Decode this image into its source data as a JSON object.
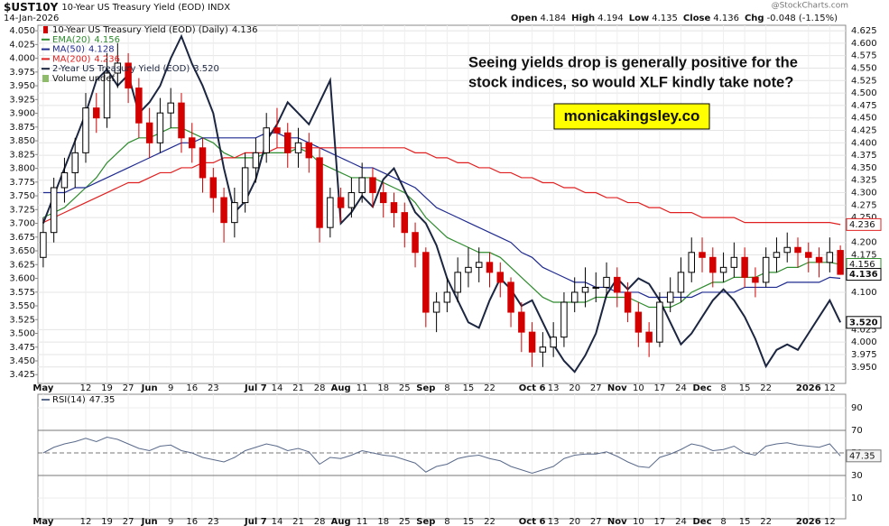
{
  "chart_data": {
    "type": "candlestick",
    "title": "$UST10Y",
    "subtitle": "10-Year US Treasury Yield (EOD) INDX",
    "date": "14-Jan-2026",
    "source": "@StockCharts.com",
    "quote": [
      {
        "label": "Open",
        "value": 4.184
      },
      {
        "label": "High",
        "value": 4.194
      },
      {
        "label": "Low",
        "value": 4.135
      },
      {
        "label": "Close",
        "value": 4.136
      },
      {
        "label": "Chg",
        "value": -0.048,
        "pct": "(-1.15%)"
      }
    ],
    "name": "10-Year US Treasury Yield (EOD) (Daily)",
    "last_label": "4.136",
    "up_color": "#000000",
    "down_color": "#d40000",
    "categories": [
      "May",
      null,
      null,
      null,
      "12",
      null,
      "19",
      null,
      "27",
      null,
      "Jun",
      null,
      "9",
      null,
      "16",
      null,
      "23",
      null,
      null,
      null,
      "Jul 7",
      null,
      "14",
      null,
      "21",
      null,
      "28",
      null,
      "Aug",
      null,
      "11",
      null,
      "18",
      null,
      "25",
      null,
      "Sep",
      null,
      "8",
      null,
      "15",
      null,
      "22",
      null,
      null,
      null,
      "Oct 6",
      null,
      "13",
      null,
      "20",
      null,
      "27",
      null,
      "Nov",
      null,
      "10",
      null,
      "17",
      null,
      "24",
      null,
      "Dec",
      null,
      "8",
      null,
      "15",
      null,
      "22",
      null,
      null,
      null,
      "2026",
      null,
      "12",
      null
    ],
    "open": [
      4.17,
      4.22,
      4.31,
      4.34,
      4.38,
      4.47,
      4.45,
      4.54,
      4.56,
      4.51,
      4.44,
      4.4,
      4.46,
      4.48,
      4.41,
      4.39,
      4.33,
      4.29,
      4.24,
      4.28,
      4.35,
      4.38,
      4.43,
      4.42,
      4.38,
      4.4,
      4.37,
      4.23,
      4.29,
      4.27,
      4.3,
      4.33,
      4.3,
      4.28,
      4.26,
      4.22,
      4.18,
      4.06,
      4.08,
      4.1,
      4.14,
      4.15,
      4.16,
      4.14,
      4.12,
      4.06,
      4.02,
      3.98,
      3.99,
      4.01,
      4.08,
      4.1,
      4.11,
      4.11,
      4.13,
      4.1,
      4.06,
      4.02,
      4.0,
      4.08,
      4.1,
      4.14,
      4.18,
      4.17,
      4.14,
      4.15,
      4.17,
      4.13,
      4.12,
      4.17,
      4.18,
      4.19,
      4.18,
      4.17,
      4.16,
      4.184
    ],
    "high": [
      4.25,
      4.33,
      4.37,
      4.41,
      4.5,
      4.5,
      4.58,
      4.6,
      4.58,
      4.53,
      4.47,
      4.49,
      4.51,
      4.5,
      4.44,
      4.41,
      4.35,
      4.31,
      4.31,
      4.38,
      4.41,
      4.46,
      4.47,
      4.44,
      4.43,
      4.42,
      4.39,
      4.31,
      4.31,
      4.33,
      4.36,
      4.35,
      4.32,
      4.3,
      4.28,
      4.24,
      4.19,
      4.1,
      4.13,
      4.17,
      4.19,
      4.19,
      4.18,
      4.16,
      4.13,
      4.08,
      4.04,
      4.02,
      4.04,
      4.1,
      4.13,
      4.15,
      4.14,
      4.16,
      4.15,
      4.12,
      4.08,
      4.04,
      4.1,
      4.13,
      4.17,
      4.21,
      4.21,
      4.19,
      4.18,
      4.2,
      4.19,
      4.15,
      4.19,
      4.21,
      4.22,
      4.21,
      4.2,
      4.19,
      4.21,
      4.194
    ],
    "low": [
      4.15,
      4.2,
      4.28,
      4.31,
      4.36,
      4.42,
      4.43,
      4.51,
      4.48,
      4.41,
      4.37,
      4.38,
      4.43,
      4.38,
      4.36,
      4.3,
      4.26,
      4.2,
      4.21,
      4.26,
      4.32,
      4.36,
      4.39,
      4.35,
      4.35,
      4.34,
      4.2,
      4.21,
      4.24,
      4.25,
      4.28,
      4.27,
      4.25,
      4.23,
      4.19,
      4.15,
      4.03,
      4.02,
      4.06,
      4.08,
      4.11,
      4.12,
      4.11,
      4.09,
      4.03,
      3.98,
      3.95,
      3.95,
      3.97,
      3.99,
      4.06,
      4.07,
      4.08,
      4.09,
      4.07,
      4.04,
      3.99,
      3.97,
      3.99,
      4.06,
      4.08,
      4.12,
      4.14,
      4.11,
      4.12,
      4.13,
      4.11,
      4.09,
      4.11,
      4.14,
      4.16,
      4.15,
      4.14,
      4.13,
      4.14,
      4.135
    ],
    "close": [
      4.22,
      4.31,
      4.34,
      4.38,
      4.47,
      4.45,
      4.54,
      4.56,
      4.51,
      4.44,
      4.4,
      4.46,
      4.48,
      4.41,
      4.39,
      4.33,
      4.29,
      4.24,
      4.28,
      4.35,
      4.38,
      4.43,
      4.42,
      4.38,
      4.4,
      4.37,
      4.23,
      4.29,
      4.27,
      4.3,
      4.33,
      4.3,
      4.28,
      4.26,
      4.22,
      4.18,
      4.06,
      4.08,
      4.1,
      4.14,
      4.15,
      4.16,
      4.14,
      4.12,
      4.06,
      4.02,
      3.98,
      3.99,
      4.01,
      4.08,
      4.1,
      4.11,
      4.11,
      4.13,
      4.1,
      4.06,
      4.02,
      4.0,
      4.08,
      4.1,
      4.14,
      4.18,
      4.17,
      4.14,
      4.15,
      4.17,
      4.13,
      4.12,
      4.17,
      4.18,
      4.19,
      4.18,
      4.17,
      4.16,
      4.18,
      4.136
    ],
    "series": [
      {
        "name": "EMA(20)",
        "last_label": "4.156",
        "color": "#2e8b2e",
        "values": [
          4.25,
          4.26,
          4.27,
          4.29,
          4.31,
          4.33,
          4.36,
          4.38,
          4.4,
          4.41,
          4.41,
          4.42,
          4.43,
          4.43,
          4.42,
          4.41,
          4.4,
          4.38,
          4.37,
          4.37,
          4.37,
          4.38,
          4.38,
          4.38,
          4.39,
          4.38,
          4.36,
          4.35,
          4.34,
          4.33,
          4.33,
          4.33,
          4.32,
          4.31,
          4.3,
          4.28,
          4.25,
          4.23,
          4.21,
          4.2,
          4.19,
          4.18,
          4.18,
          4.17,
          4.15,
          4.13,
          4.11,
          4.09,
          4.08,
          4.08,
          4.08,
          4.08,
          4.09,
          4.09,
          4.09,
          4.09,
          4.08,
          4.07,
          4.07,
          4.07,
          4.08,
          4.1,
          4.11,
          4.12,
          4.12,
          4.13,
          4.13,
          4.13,
          4.14,
          4.14,
          4.15,
          4.15,
          4.16,
          4.16,
          4.16,
          4.156
        ]
      },
      {
        "name": "MA(50)",
        "last_label": "4.128",
        "color": "#1f2a8f",
        "values": [
          4.3,
          4.3,
          4.3,
          4.31,
          4.31,
          4.32,
          4.33,
          4.34,
          4.35,
          4.36,
          4.37,
          4.38,
          4.39,
          4.4,
          4.4,
          4.41,
          4.41,
          4.41,
          4.41,
          4.41,
          4.41,
          4.42,
          4.42,
          4.41,
          4.41,
          4.4,
          4.39,
          4.38,
          4.37,
          4.36,
          4.35,
          4.35,
          4.34,
          4.33,
          4.32,
          4.31,
          4.29,
          4.27,
          4.26,
          4.25,
          4.24,
          4.23,
          4.22,
          4.21,
          4.2,
          4.18,
          4.17,
          4.15,
          4.14,
          4.13,
          4.12,
          4.12,
          4.11,
          4.11,
          4.1,
          4.1,
          4.1,
          4.09,
          4.09,
          4.09,
          4.09,
          4.09,
          4.1,
          4.1,
          4.1,
          4.1,
          4.11,
          4.11,
          4.11,
          4.11,
          4.12,
          4.12,
          4.12,
          4.12,
          4.13,
          4.128
        ]
      },
      {
        "name": "MA(200)",
        "last_label": "4.236",
        "color": "#e02020",
        "values": [
          4.24,
          4.25,
          4.26,
          4.27,
          4.28,
          4.29,
          4.3,
          4.31,
          4.32,
          4.32,
          4.33,
          4.34,
          4.34,
          4.35,
          4.35,
          4.36,
          4.36,
          4.37,
          4.37,
          4.38,
          4.38,
          4.38,
          4.39,
          4.39,
          4.39,
          4.39,
          4.39,
          4.39,
          4.39,
          4.39,
          4.39,
          4.39,
          4.39,
          4.39,
          4.39,
          4.38,
          4.38,
          4.37,
          4.37,
          4.36,
          4.36,
          4.35,
          4.35,
          4.34,
          4.34,
          4.33,
          4.33,
          4.32,
          4.32,
          4.31,
          4.31,
          4.3,
          4.3,
          4.29,
          4.29,
          4.28,
          4.28,
          4.27,
          4.27,
          4.26,
          4.26,
          4.26,
          4.25,
          4.25,
          4.25,
          4.25,
          4.24,
          4.24,
          4.24,
          4.24,
          4.24,
          4.24,
          4.24,
          4.24,
          4.24,
          4.236
        ]
      },
      {
        "name": "2-Year US Treasury Yield (EOD)",
        "last_label": "3.520",
        "color": "#1c2640",
        "axis": "y2",
        "values": [
          3.7,
          3.75,
          3.8,
          3.85,
          3.9,
          3.96,
          3.98,
          3.95,
          3.97,
          3.9,
          3.92,
          3.95,
          4.0,
          4.04,
          3.99,
          3.95,
          3.9,
          3.8,
          3.72,
          3.74,
          3.78,
          3.85,
          3.88,
          3.92,
          3.9,
          3.88,
          3.92,
          3.96,
          3.7,
          3.72,
          3.75,
          3.73,
          3.78,
          3.8,
          3.76,
          3.72,
          3.7,
          3.66,
          3.6,
          3.56,
          3.52,
          3.51,
          3.56,
          3.6,
          3.58,
          3.55,
          3.56,
          3.52,
          3.48,
          3.45,
          3.43,
          3.46,
          3.5,
          3.57,
          3.6,
          3.58,
          3.6,
          3.59,
          3.56,
          3.52,
          3.48,
          3.5,
          3.53,
          3.56,
          3.58,
          3.56,
          3.53,
          3.49,
          3.44,
          3.47,
          3.48,
          3.47,
          3.5,
          3.53,
          3.56,
          3.52
        ]
      }
    ],
    "volume_label": "Volume undef",
    "annotations": [
      "Seeing yields drop is generally positive for the",
      "stock indices, so would XLF kindly take note?"
    ],
    "watermark": "monicakingsley.co",
    "ylim": [
      3.917,
      4.636
    ],
    "yticks": [
      {
        "value": 3.95,
        "label": "3.950"
      },
      3.975,
      {
        "value": 4,
        "label": "4.000"
      },
      4.025,
      {
        "value": 4.1,
        "label": "4.100"
      },
      4.175,
      {
        "value": 4.2,
        "label": "4.200"
      },
      {
        "value": 4.25,
        "label": "4.250"
      },
      4.275,
      {
        "value": 4.3,
        "label": "4.300"
      },
      4.325,
      {
        "value": 4.35,
        "label": "4.350"
      },
      4.375,
      {
        "value": 4.4,
        "label": "4.400"
      },
      4.425,
      {
        "value": 4.45,
        "label": "4.450"
      },
      4.475,
      {
        "value": 4.5,
        "label": "4.500"
      },
      4.525,
      {
        "value": 4.55,
        "label": "4.550"
      },
      4.575,
      {
        "value": 4.6,
        "label": "4.600"
      },
      4.625
    ],
    "y2lim": [
      3.409,
      4.06
    ],
    "y2ticks": [
      3.425,
      {
        "value": 3.45,
        "label": "3.450"
      },
      3.475,
      {
        "value": 3.5,
        "label": "3.500"
      },
      3.525,
      {
        "value": 3.55,
        "label": "3.550"
      },
      3.575,
      {
        "value": 3.6,
        "label": "3.600"
      },
      3.625,
      {
        "value": 3.65,
        "label": "3.650"
      },
      3.675,
      {
        "value": 3.7,
        "label": "3.700"
      },
      3.725,
      {
        "value": 3.75,
        "label": "3.750"
      },
      3.775,
      {
        "value": 3.8,
        "label": "3.800"
      },
      3.825,
      {
        "value": 3.85,
        "label": "3.850"
      },
      3.875,
      {
        "value": 3.9,
        "label": "3.900"
      },
      3.925,
      {
        "value": 3.95,
        "label": "3.950"
      },
      3.975,
      {
        "value": 4,
        "label": "4.000"
      },
      4.025,
      {
        "value": 4.05,
        "label": "4.050"
      }
    ],
    "grid": true,
    "rsi": {
      "name": "RSI(14)",
      "last_label": "47.35",
      "color": "#5a6a8a",
      "ylim": [
        0,
        100
      ],
      "yticks": [
        10,
        30,
        50,
        70,
        90
      ],
      "values": [
        50,
        55,
        58,
        60,
        63,
        60,
        64,
        62,
        58,
        54,
        52,
        56,
        57,
        52,
        50,
        46,
        44,
        42,
        46,
        52,
        55,
        58,
        56,
        52,
        54,
        51,
        40,
        46,
        45,
        48,
        52,
        50,
        48,
        47,
        44,
        41,
        33,
        38,
        40,
        45,
        47,
        48,
        45,
        43,
        38,
        35,
        32,
        35,
        38,
        45,
        48,
        49,
        49,
        51,
        47,
        42,
        38,
        37,
        46,
        49,
        53,
        58,
        56,
        52,
        53,
        56,
        50,
        48,
        56,
        58,
        59,
        57,
        56,
        55,
        58,
        47.35
      ]
    }
  }
}
